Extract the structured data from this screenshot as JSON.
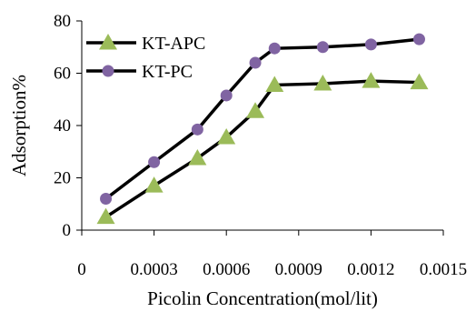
{
  "chart_data": {
    "type": "line",
    "title": "",
    "xlabel": "Picolin Concentration(mol/lit)",
    "ylabel": "Adsorption%",
    "x_ticks": [
      "0",
      "0.0003",
      "0.0006",
      "0.0009",
      "0.0012",
      "0.0015"
    ],
    "y_ticks": [
      "0",
      "20",
      "40",
      "60",
      "80"
    ],
    "xlim": [
      0,
      0.0015
    ],
    "ylim": [
      0,
      80
    ],
    "grid": false,
    "legend_position": "top-left",
    "series": [
      {
        "name": "KT-APC",
        "marker": "triangle",
        "marker_color": "#9bbb59",
        "line_color": "#000000",
        "x": [
          0.0001,
          0.0003,
          0.00048,
          0.0006,
          0.00072,
          0.0008,
          0.001,
          0.0012,
          0.0014
        ],
        "y": [
          5,
          17,
          27.5,
          35.5,
          45.5,
          55.5,
          56,
          57,
          56.5
        ]
      },
      {
        "name": "KT-PC",
        "marker": "circle",
        "marker_color": "#8064a2",
        "line_color": "#000000",
        "x": [
          0.0001,
          0.0003,
          0.00048,
          0.0006,
          0.00072,
          0.0008,
          0.001,
          0.0012,
          0.0014
        ],
        "y": [
          12,
          26,
          38.5,
          51.5,
          64,
          69.5,
          70,
          71,
          73
        ]
      }
    ]
  }
}
